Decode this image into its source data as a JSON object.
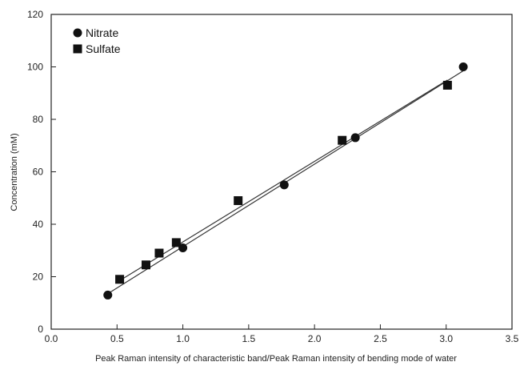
{
  "chart_data": {
    "type": "scatter",
    "xlabel": "Peak Raman intensity of characteristic band/Peak Raman intensity of bending mode of water",
    "ylabel": "Concentration (mM)",
    "xlim": [
      0.0,
      3.5
    ],
    "ylim": [
      0,
      120
    ],
    "xticks": [
      "0.0",
      "0.5",
      "1.0",
      "1.5",
      "2.0",
      "2.5",
      "3.0",
      "3.5"
    ],
    "yticks": [
      "0",
      "20",
      "40",
      "60",
      "80",
      "100",
      "120"
    ],
    "grid": false,
    "legend_position": "top-left",
    "series": [
      {
        "name": "Nitrate",
        "marker": "circle",
        "color": "#111111",
        "points": [
          {
            "x": 0.43,
            "y": 13
          },
          {
            "x": 1.0,
            "y": 31
          },
          {
            "x": 1.77,
            "y": 55
          },
          {
            "x": 2.31,
            "y": 73
          },
          {
            "x": 3.13,
            "y": 100
          }
        ],
        "fit_line": {
          "x": [
            0.43,
            3.13
          ],
          "y": [
            13.5,
            98.5
          ]
        }
      },
      {
        "name": "Sulfate",
        "marker": "square",
        "color": "#111111",
        "points": [
          {
            "x": 0.52,
            "y": 19
          },
          {
            "x": 0.72,
            "y": 24.5
          },
          {
            "x": 0.82,
            "y": 29
          },
          {
            "x": 0.95,
            "y": 33
          },
          {
            "x": 1.42,
            "y": 49
          },
          {
            "x": 2.21,
            "y": 72
          },
          {
            "x": 3.01,
            "y": 93
          }
        ],
        "fit_line": {
          "x": [
            0.52,
            3.01
          ],
          "y": [
            18.5,
            95
          ]
        }
      }
    ]
  }
}
